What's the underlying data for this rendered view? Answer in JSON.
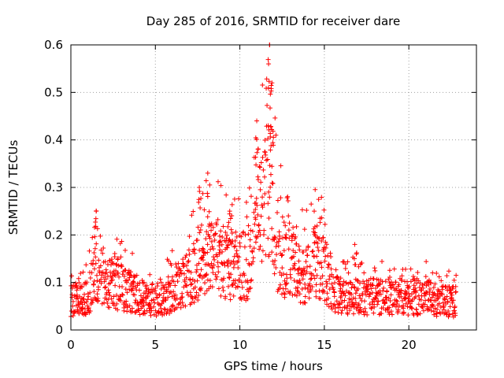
{
  "chart_data": {
    "type": "scatter",
    "title": "Day 285 of 2016, SRMTID for receiver dare",
    "xlabel": "GPS time / hours",
    "ylabel": "SRMTID / TECUs",
    "xlim": [
      0,
      24
    ],
    "ylim": [
      0,
      0.6
    ],
    "xticks": [
      0,
      5,
      10,
      15,
      20
    ],
    "yticks": [
      0,
      0.1,
      0.2,
      0.3,
      0.4,
      0.5,
      0.6
    ],
    "xtick_labels": [
      "0",
      "5",
      "10",
      "15",
      "20"
    ],
    "ytick_labels": [
      "0",
      "0.1",
      "0.2",
      "0.3",
      "0.4",
      "0.5",
      "0.6"
    ],
    "grid": true,
    "marker": "+",
    "series": [
      {
        "name": "SRMTID",
        "color": "#ff0000",
        "envelope_hours": [
          0,
          1,
          1.5,
          2,
          3,
          4,
          5,
          6,
          7,
          7.5,
          8,
          9,
          10,
          10.5,
          11,
          11.5,
          11.8,
          12.2,
          13,
          14,
          14.5,
          15,
          15.5,
          16,
          17,
          18,
          19,
          20,
          21,
          22,
          22.8
        ],
        "envelope_typical": [
          0.06,
          0.07,
          0.12,
          0.1,
          0.09,
          0.07,
          0.06,
          0.08,
          0.11,
          0.13,
          0.15,
          0.15,
          0.13,
          0.14,
          0.2,
          0.28,
          0.35,
          0.18,
          0.13,
          0.12,
          0.15,
          0.13,
          0.09,
          0.07,
          0.07,
          0.07,
          0.07,
          0.07,
          0.07,
          0.06,
          0.06
        ],
        "peaks": [
          {
            "x": 1.5,
            "y": 0.25
          },
          {
            "x": 7.6,
            "y": 0.3
          },
          {
            "x": 8.1,
            "y": 0.33
          },
          {
            "x": 9.4,
            "y": 0.25
          },
          {
            "x": 11.0,
            "y": 0.44
          },
          {
            "x": 11.7,
            "y": 0.56
          },
          {
            "x": 11.9,
            "y": 0.52
          },
          {
            "x": 14.4,
            "y": 0.25
          },
          {
            "x": 16.8,
            "y": 0.18
          }
        ]
      }
    ]
  }
}
